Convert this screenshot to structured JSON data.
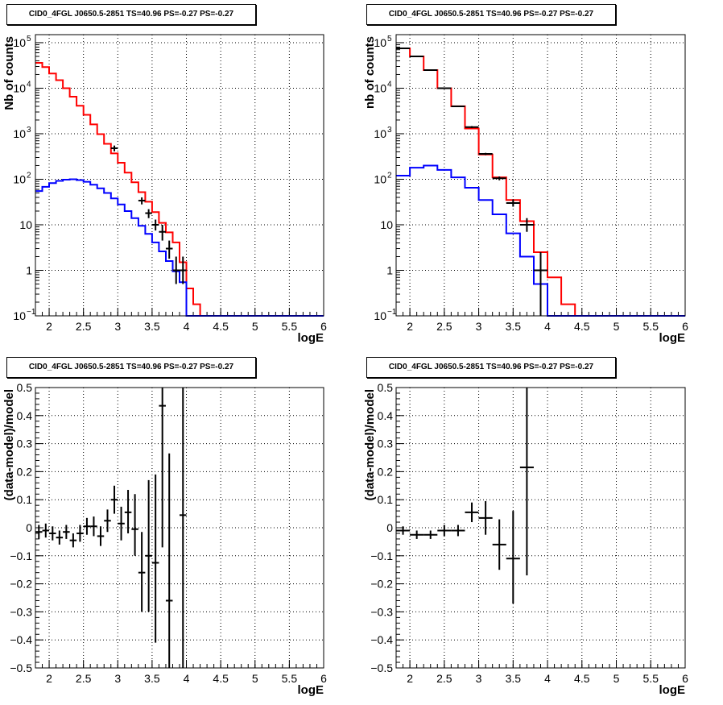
{
  "chart_data": [
    {
      "type": "line",
      "title": "CID0_4FGL J0650.5-2851 TS=40.96 PS=-0.27 PS=-0.27",
      "xlabel": "logE",
      "ylabel": "Nb of counts",
      "xlim": [
        1.8,
        6
      ],
      "ylim": [
        0.1,
        150000
      ],
      "yscale": "log",
      "grid": true,
      "x_ticks": [
        "2",
        "2.5",
        "3",
        "3.5",
        "4",
        "4.5",
        "5",
        "5.5",
        "6"
      ],
      "y_ticks": [
        {
          "v": 0.1,
          "label": "10",
          "exp": "−1"
        },
        {
          "v": 1,
          "label": "1",
          "exp": ""
        },
        {
          "v": 10,
          "label": "10",
          "exp": ""
        },
        {
          "v": 100,
          "label": "10",
          "exp": "2"
        },
        {
          "v": 1000,
          "label": "10",
          "exp": "3"
        },
        {
          "v": 10000,
          "label": "10",
          "exp": "4"
        },
        {
          "v": 100000,
          "label": "10",
          "exp": "5"
        }
      ],
      "bin_edges": [
        1.8,
        1.9,
        2.0,
        2.1,
        2.2,
        2.3,
        2.4,
        2.5,
        2.6,
        2.7,
        2.8,
        2.9,
        3.0,
        3.1,
        3.2,
        3.3,
        3.4,
        3.5,
        3.6,
        3.7,
        3.8,
        3.9,
        4.0,
        4.1,
        4.2,
        4.3,
        4.4,
        4.5,
        4.6,
        4.7,
        4.8,
        4.9,
        5.0,
        5.1,
        5.2,
        5.3,
        5.4,
        5.5,
        5.6,
        5.7,
        5.8,
        5.9,
        6.0
      ],
      "series": [
        {
          "name": "",
          "color": "#ff0000",
          "values": [
            36000,
            29000,
            21000,
            15000,
            10000,
            6500,
            4100,
            2600,
            1600,
            980,
            600,
            370,
            230,
            140,
            86,
            52,
            32,
            19,
            11,
            6.8,
            4.1,
            1.5,
            0.4,
            0.18,
            0.1,
            0.1,
            0.1,
            0.1,
            0.1,
            0.1,
            0.1,
            0.1,
            0.1,
            0.1,
            0.1,
            0.1,
            0.1,
            0.1,
            0.1,
            0.1,
            0.1,
            0.1
          ]
        },
        {
          "name": "",
          "color": "#0000ff",
          "values": [
            55,
            68,
            82,
            92,
            98,
            100,
            96,
            88,
            76,
            63,
            50,
            38,
            28,
            20,
            14,
            9.5,
            6.3,
            4.1,
            2.6,
            1.6,
            0.95,
            0.55,
            0.1,
            0.1,
            0.1,
            0.1,
            0.1,
            0.1,
            0.1,
            0.1,
            0.1,
            0.1,
            0.1,
            0.1,
            0.1,
            0.1,
            0.1,
            0.1,
            0.1,
            0.1,
            0.1,
            0.1
          ]
        }
      ],
      "points": [
        {
          "x": 2.95,
          "y": 480,
          "lo": 410,
          "hi": 550
        },
        {
          "x": 3.35,
          "y": 34,
          "lo": 28,
          "hi": 40
        },
        {
          "x": 3.45,
          "y": 18,
          "lo": 14,
          "hi": 22
        },
        {
          "x": 3.55,
          "y": 10,
          "lo": 7.5,
          "hi": 13
        },
        {
          "x": 3.65,
          "y": 7,
          "lo": 4.5,
          "hi": 10
        },
        {
          "x": 3.75,
          "y": 3,
          "lo": 1.8,
          "hi": 4.5
        },
        {
          "x": 3.85,
          "y": 1,
          "lo": 0.5,
          "hi": 2
        },
        {
          "x": 3.95,
          "y": 1,
          "lo": 0.5,
          "hi": 2
        }
      ]
    },
    {
      "type": "line",
      "title": "CID0_4FGL J0650.5-2851 TS=40.96 PS=-0.27 PS=-0.27",
      "xlabel": "logE",
      "ylabel": "nb of counts",
      "xlim": [
        1.8,
        6
      ],
      "ylim": [
        0.1,
        150000
      ],
      "yscale": "log",
      "grid": true,
      "x_ticks": [
        "2",
        "2.5",
        "3",
        "3.5",
        "4",
        "4.5",
        "5",
        "5.5",
        "6"
      ],
      "y_ticks": [
        {
          "v": 0.1,
          "label": "10",
          "exp": "−1"
        },
        {
          "v": 1,
          "label": "1",
          "exp": ""
        },
        {
          "v": 10,
          "label": "10",
          "exp": ""
        },
        {
          "v": 100,
          "label": "10",
          "exp": "2"
        },
        {
          "v": 1000,
          "label": "10",
          "exp": "3"
        },
        {
          "v": 10000,
          "label": "10",
          "exp": "4"
        },
        {
          "v": 100000,
          "label": "10",
          "exp": "5"
        }
      ],
      "bin_edges": [
        1.8,
        2.0,
        2.2,
        2.4,
        2.6,
        2.8,
        3.0,
        3.2,
        3.4,
        3.6,
        3.8,
        4.0,
        4.2,
        4.4,
        4.6,
        4.8,
        5.0,
        5.2,
        5.4,
        5.6,
        5.8,
        6.0
      ],
      "series": [
        {
          "name": "",
          "color": "#ff0000",
          "values": [
            75000,
            50000,
            25000,
            10000,
            4000,
            1300,
            350,
            110,
            35,
            12,
            2.5,
            0.7,
            0.18,
            0.1,
            0.1,
            0.1,
            0.1,
            0.1,
            0.1,
            0.1,
            0.1
          ]
        },
        {
          "name": "",
          "color": "#0000ff",
          "values": [
            120,
            180,
            200,
            160,
            110,
            65,
            35,
            17,
            6.5,
            2,
            0.5,
            0.1,
            0.1,
            0.1,
            0.1,
            0.1,
            0.1,
            0.1,
            0.1,
            0.1,
            0.1
          ]
        }
      ],
      "points": [
        {
          "x": 1.9,
          "y": 75000,
          "lo": 74000,
          "hi": 76000
        },
        {
          "x": 2.1,
          "y": 50000,
          "lo": 49000,
          "hi": 51000
        },
        {
          "x": 2.3,
          "y": 25000,
          "lo": 24500,
          "hi": 25500
        },
        {
          "x": 2.5,
          "y": 10000,
          "lo": 9800,
          "hi": 10200
        },
        {
          "x": 2.7,
          "y": 4000,
          "lo": 3900,
          "hi": 4100
        },
        {
          "x": 2.9,
          "y": 1400,
          "lo": 1330,
          "hi": 1470
        },
        {
          "x": 3.1,
          "y": 360,
          "lo": 340,
          "hi": 380
        },
        {
          "x": 3.3,
          "y": 105,
          "lo": 95,
          "hi": 115
        },
        {
          "x": 3.5,
          "y": 30,
          "lo": 25,
          "hi": 36
        },
        {
          "x": 3.7,
          "y": 10,
          "lo": 7,
          "hi": 14
        },
        {
          "x": 3.9,
          "y": 1,
          "lo": 0.1,
          "hi": 2.5
        }
      ]
    },
    {
      "type": "scatter",
      "title": "CID0_4FGL J0650.5-2851 TS=40.96 PS=-0.27 PS=-0.27",
      "xlabel": "logE",
      "ylabel": "(data-model)/model",
      "xlim": [
        1.8,
        6
      ],
      "ylim": [
        -0.5,
        0.5
      ],
      "grid": true,
      "x_ticks": [
        "2",
        "2.5",
        "3",
        "3.5",
        "4",
        "4.5",
        "5",
        "5.5",
        "6"
      ],
      "y_ticks": [
        "−0.5",
        "−0.4",
        "−0.3",
        "−0.2",
        "−0.1",
        "0",
        "0.1",
        "0.2",
        "0.3",
        "0.4",
        "0.5"
      ],
      "bin_half_width": 0.05,
      "points": [
        {
          "x": 1.85,
          "y": -0.015,
          "lo": -0.04,
          "hi": 0.01
        },
        {
          "x": 1.95,
          "y": -0.01,
          "lo": -0.035,
          "hi": 0.015
        },
        {
          "x": 2.05,
          "y": -0.02,
          "lo": -0.045,
          "hi": 0.005
        },
        {
          "x": 2.15,
          "y": -0.035,
          "lo": -0.06,
          "hi": -0.01
        },
        {
          "x": 2.25,
          "y": -0.015,
          "lo": -0.04,
          "hi": 0.01
        },
        {
          "x": 2.35,
          "y": -0.045,
          "lo": -0.07,
          "hi": -0.02
        },
        {
          "x": 2.45,
          "y": -0.02,
          "lo": -0.05,
          "hi": 0.01
        },
        {
          "x": 2.55,
          "y": 0.005,
          "lo": -0.025,
          "hi": 0.035
        },
        {
          "x": 2.65,
          "y": 0.005,
          "lo": -0.03,
          "hi": 0.04
        },
        {
          "x": 2.75,
          "y": -0.03,
          "lo": -0.065,
          "hi": 0.005
        },
        {
          "x": 2.85,
          "y": 0.025,
          "lo": -0.015,
          "hi": 0.065
        },
        {
          "x": 2.95,
          "y": 0.1,
          "lo": 0.05,
          "hi": 0.15
        },
        {
          "x": 3.05,
          "y": 0.015,
          "lo": -0.045,
          "hi": 0.075
        },
        {
          "x": 3.15,
          "y": 0.055,
          "lo": -0.02,
          "hi": 0.135
        },
        {
          "x": 3.25,
          "y": -0.005,
          "lo": -0.1,
          "hi": 0.12
        },
        {
          "x": 3.35,
          "y": -0.16,
          "lo": -0.3,
          "hi": -0.015
        },
        {
          "x": 3.45,
          "y": -0.1,
          "lo": -0.3,
          "hi": 0.17
        },
        {
          "x": 3.55,
          "y": -0.125,
          "lo": -0.41,
          "hi": 0.19
        },
        {
          "x": 3.65,
          "y": 0.435,
          "lo": -0.07,
          "hi": 0.5
        },
        {
          "x": 3.75,
          "y": -0.26,
          "lo": -0.5,
          "hi": 0.265
        },
        {
          "x": 3.95,
          "y": 0.045,
          "lo": -0.5,
          "hi": 0.5
        }
      ]
    },
    {
      "type": "scatter",
      "title": "CID0_4FGL J0650.5-2851 TS=40.96 PS=-0.27 PS=-0.27",
      "xlabel": "logE",
      "ylabel": "(data-model)/model",
      "xlim": [
        1.8,
        6
      ],
      "ylim": [
        -0.5,
        0.5
      ],
      "grid": true,
      "x_ticks": [
        "2",
        "2.5",
        "3",
        "3.5",
        "4",
        "4.5",
        "5",
        "5.5",
        "6"
      ],
      "y_ticks": [
        "−0.5",
        "−0.4",
        "−0.3",
        "−0.2",
        "−0.1",
        "0",
        "0.1",
        "0.2",
        "0.3",
        "0.4",
        "0.5"
      ],
      "bin_half_width": 0.1,
      "points": [
        {
          "x": 1.9,
          "y": -0.01,
          "lo": -0.025,
          "hi": 0.005
        },
        {
          "x": 2.1,
          "y": -0.025,
          "lo": -0.04,
          "hi": -0.01
        },
        {
          "x": 2.3,
          "y": -0.025,
          "lo": -0.04,
          "hi": -0.01
        },
        {
          "x": 2.5,
          "y": -0.01,
          "lo": -0.03,
          "hi": 0.01
        },
        {
          "x": 2.7,
          "y": -0.01,
          "lo": -0.03,
          "hi": 0.01
        },
        {
          "x": 2.9,
          "y": 0.055,
          "lo": 0.02,
          "hi": 0.09
        },
        {
          "x": 3.1,
          "y": 0.035,
          "lo": -0.025,
          "hi": 0.095
        },
        {
          "x": 3.3,
          "y": -0.06,
          "lo": -0.15,
          "hi": 0.03
        },
        {
          "x": 3.5,
          "y": -0.11,
          "lo": -0.27,
          "hi": 0.06
        },
        {
          "x": 3.7,
          "y": 0.215,
          "lo": -0.17,
          "hi": 0.5
        }
      ]
    }
  ]
}
